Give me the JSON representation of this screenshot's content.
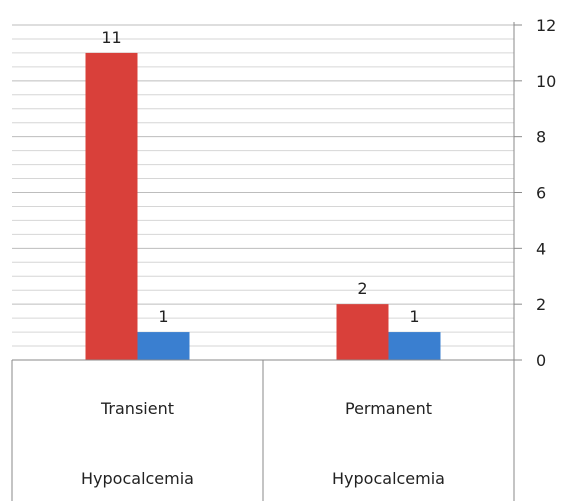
{
  "chart_data": {
    "type": "bar",
    "categories": [
      "Transient",
      "Permanent"
    ],
    "category_sublabels": [
      "Hypocalcemia",
      "Hypocalcemia"
    ],
    "series": [
      {
        "values": [
          11,
          2
        ],
        "color": "#d9403a"
      },
      {
        "values": [
          1,
          1
        ],
        "color": "#3a7fd0"
      }
    ],
    "data_labels": [
      [
        "11",
        "2"
      ],
      [
        "1",
        "1"
      ]
    ],
    "y_ticks": [
      0,
      2,
      4,
      6,
      8,
      10,
      12
    ],
    "ylim": [
      0,
      12
    ],
    "y_axis_side": "right",
    "grid": true,
    "minor_grid_step": 0.5
  }
}
